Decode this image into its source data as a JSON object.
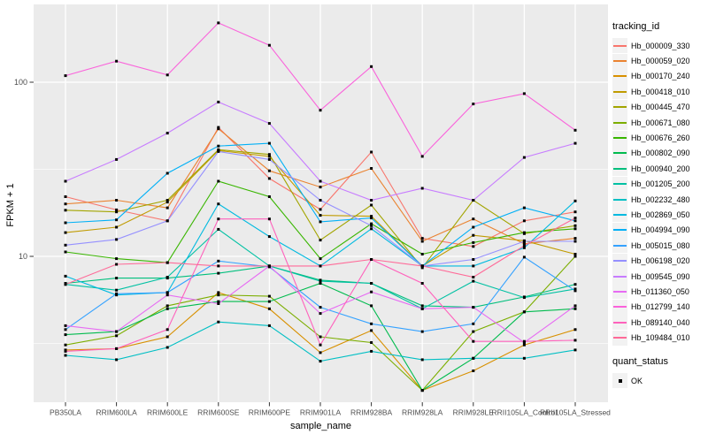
{
  "chart_data": {
    "type": "line",
    "title": "",
    "xlabel": "sample_name",
    "ylabel": "FPKM + 1",
    "y_scale": "log10",
    "y_ticks": [
      100,
      10
    ],
    "y_minor_ticks": [
      31.6,
      3.16
    ],
    "ylim": [
      1.45,
      270
    ],
    "grid": true,
    "legend_position": "right",
    "point_shape": "filled-square",
    "point_color": "#000000",
    "x_categories": [
      "PB350LA",
      "RRIM600LA",
      "RRIM600LE",
      "RRIM600SE",
      "RRIM600PE",
      "RRIM901LA",
      "RRIM928BA",
      "RRIM928LA",
      "RRIM928LE",
      "RRII105LA_Control",
      "RRII105LA_Stressed"
    ],
    "series": [
      {
        "name": "Hb_000009_330",
        "color": "#F8766D",
        "values": [
          22,
          18.5,
          16,
          55,
          28,
          18.6,
          39.7,
          12.7,
          11.4,
          16,
          18
        ]
      },
      {
        "name": "Hb_000059_020",
        "color": "#EA8331",
        "values": [
          20,
          21,
          19,
          54,
          31,
          25,
          32,
          12.2,
          16.4,
          11.8,
          12.7
        ]
      },
      {
        "name": "Hb_000170_240",
        "color": "#D89000",
        "values": [
          2.9,
          2.95,
          3.45,
          6.2,
          5.0,
          2.8,
          3.75,
          1.7,
          2.2,
          3.1,
          3.8
        ]
      },
      {
        "name": "Hb_000418_010",
        "color": "#C09B00",
        "values": [
          13.7,
          14.7,
          20.5,
          40.5,
          37.5,
          17.2,
          17.0,
          8.8,
          13.2,
          12.3,
          10.3
        ]
      },
      {
        "name": "Hb_000445_470",
        "color": "#A3A500",
        "values": [
          18.4,
          18.0,
          21.0,
          41,
          38.5,
          12.4,
          19.7,
          8.6,
          21,
          13.5,
          15
        ]
      },
      {
        "name": "Hb_000671_080",
        "color": "#7CAE00",
        "values": [
          3.1,
          3.5,
          5.2,
          6.0,
          5.9,
          3.45,
          3.2,
          1.7,
          3.7,
          4.8,
          10
        ]
      },
      {
        "name": "Hb_000676_260",
        "color": "#39B600",
        "values": [
          10.6,
          9.7,
          9.2,
          27,
          22,
          9.7,
          15.4,
          10.3,
          12,
          13.7,
          14.4
        ]
      },
      {
        "name": "Hb_000802_090",
        "color": "#00BB4E",
        "values": [
          3.55,
          3.7,
          5.0,
          5.5,
          5.5,
          7.0,
          5.2,
          1.7,
          2.6,
          4.8,
          5.0
        ]
      },
      {
        "name": "Hb_000940_200",
        "color": "#00BF7D",
        "values": [
          7.0,
          7.5,
          7.5,
          8.0,
          8.8,
          7.3,
          7.0,
          5.2,
          5.1,
          5.85,
          6.9
        ]
      },
      {
        "name": "Hb_001205_200",
        "color": "#00C1A3",
        "values": [
          6.9,
          6.4,
          7.6,
          14.3,
          8.8,
          7.2,
          7.0,
          5.0,
          7.2,
          5.8,
          6.5
        ]
      },
      {
        "name": "Hb_002232_480",
        "color": "#00BFC4",
        "values": [
          2.7,
          2.55,
          3.0,
          4.2,
          4.0,
          2.5,
          2.85,
          2.55,
          2.6,
          2.6,
          2.9
        ]
      },
      {
        "name": "Hb_002869_050",
        "color": "#00BAE0",
        "values": [
          7.7,
          6.0,
          6.2,
          20,
          13,
          8.8,
          14.4,
          8.8,
          8.8,
          11.2,
          20.8
        ]
      },
      {
        "name": "Hb_004994_090",
        "color": "#00B0F6",
        "values": [
          15.6,
          16.2,
          30,
          43,
          44.6,
          15.8,
          16.6,
          8.8,
          14.7,
          19,
          16
        ]
      },
      {
        "name": "Hb_005015_080",
        "color": "#35A2FF",
        "values": [
          3.8,
          6.1,
          6.2,
          9.4,
          8.7,
          5.1,
          4.1,
          3.7,
          4.1,
          9.9,
          6.35
        ]
      },
      {
        "name": "Hb_006198_020",
        "color": "#9590FF",
        "values": [
          11.6,
          12.5,
          16,
          40,
          36,
          21,
          15,
          8.8,
          9.6,
          12.2,
          12.2
        ]
      },
      {
        "name": "Hb_009545_090",
        "color": "#C77CFF",
        "values": [
          27,
          36,
          51,
          77,
          58,
          27,
          21,
          24.6,
          21,
          37,
          44.6
        ]
      },
      {
        "name": "Hb_011360_050",
        "color": "#E76BF3",
        "values": [
          4.0,
          3.7,
          6.0,
          5.35,
          8.8,
          4.7,
          6.25,
          5.0,
          5.1,
          3.2,
          5.2
        ]
      },
      {
        "name": "Hb_012799_140",
        "color": "#FA62DB",
        "values": [
          109,
          132,
          110,
          219,
          163,
          69,
          123,
          37.5,
          75,
          86,
          53
        ]
      },
      {
        "name": "Hb_089140_040",
        "color": "#FF62BC",
        "values": [
          2.85,
          2.95,
          3.8,
          16.4,
          16.4,
          3.1,
          9.6,
          7.0,
          3.25,
          3.25,
          3.3
        ]
      },
      {
        "name": "Hb_109484_010",
        "color": "#FF6A98",
        "values": [
          6.9,
          9.0,
          9.2,
          8.8,
          8.8,
          8.8,
          9.6,
          8.8,
          7.6,
          11.5,
          16.6
        ]
      }
    ]
  },
  "legend": {
    "tracking_title": "tracking_id",
    "quant_title": "quant_status",
    "quant_items": [
      {
        "label": "OK"
      }
    ]
  },
  "colors": {
    "panel_background": "#EBEBEB",
    "grid_line": "#FFFFFF",
    "tick_label": "#4D4D4D",
    "axis_title": "#000000",
    "tick_mark": "#333333",
    "legend_key_background": "#F2F2F2"
  }
}
